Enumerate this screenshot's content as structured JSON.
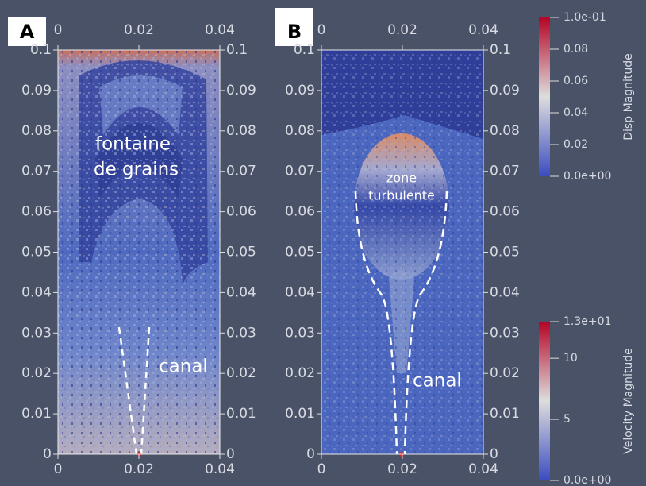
{
  "panels": [
    {
      "label": "A",
      "x_ticks": [
        0,
        0.02,
        0.04
      ],
      "y_ticks": [
        0,
        0.01,
        0.02,
        0.03,
        0.04,
        0.05,
        0.06,
        0.07,
        0.08,
        0.09,
        0.1
      ],
      "annotations": [
        "fontaine",
        "de grains",
        "canal"
      ]
    },
    {
      "label": "B",
      "x_ticks": [
        0,
        0.02,
        0.04
      ],
      "y_ticks": [
        0,
        0.01,
        0.02,
        0.03,
        0.04,
        0.05,
        0.06,
        0.07,
        0.08,
        0.09,
        0.1
      ],
      "annotations": [
        "zone",
        "turbulente",
        "canal"
      ]
    }
  ],
  "colorbars": [
    {
      "title": "Disp Magnitude",
      "ticks": [
        {
          "value": 0.1,
          "label": "1.0e-01"
        },
        0.08,
        0.06,
        0.04,
        0.02,
        {
          "value": 0,
          "label": "0.0e+00"
        }
      ]
    },
    {
      "title": "Velocity Magnitude",
      "ticks": [
        {
          "value": 13,
          "label": "1.3e+01"
        },
        10,
        5,
        {
          "value": 0,
          "label": "0.0e+00"
        }
      ]
    }
  ]
}
